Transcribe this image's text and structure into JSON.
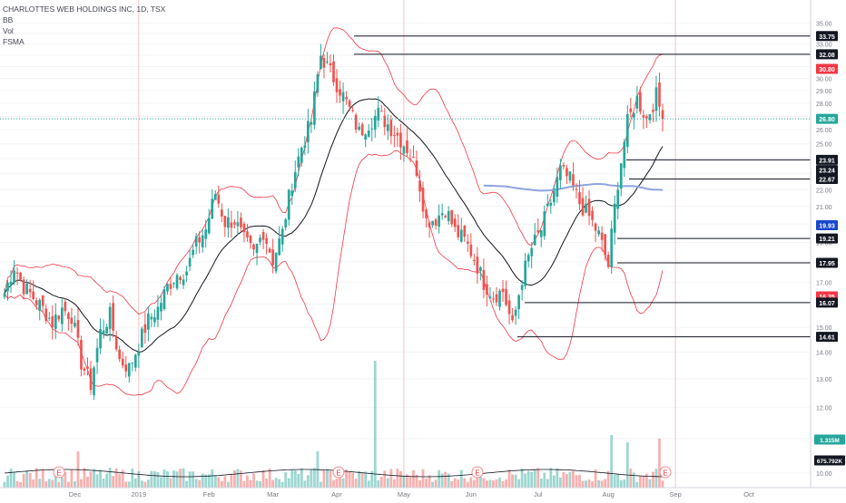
{
  "chart_data": {
    "type": "candlestick",
    "title": "CHARLOTTES WEB HOLDINGS INC, 1D, TSX",
    "indicators": [
      "BB",
      "Vol",
      "FSMA"
    ],
    "y_axis": {
      "scale": "log",
      "range": [
        9.6,
        36.2
      ],
      "ticks": [
        "35.00",
        "34.00",
        "33.00",
        "32.00",
        "31.00",
        "30.00",
        "29.00",
        "28.00",
        "27.00",
        "26.00",
        "25.00",
        "24.00",
        "23.00",
        "22.00",
        "21.00",
        "20.00",
        "19.00",
        "18.00",
        "17.00",
        "16.00",
        "15.00",
        "14.00",
        "13.00",
        "12.00",
        "11.00",
        "10.00"
      ]
    },
    "x_axis": {
      "labels": [
        "Dec",
        "2019",
        "Feb",
        "Mar",
        "Apr",
        "May",
        "Jun",
        "Jul",
        "Aug",
        "Sep",
        "Oct"
      ]
    },
    "horizontal_levels": [
      33.75,
      32.08,
      23.91,
      22.67,
      19.21,
      17.95,
      16.07,
      14.61
    ],
    "price_labels": [
      {
        "value": "33.75",
        "color": "#131722"
      },
      {
        "value": "32.08",
        "color": "#131722"
      },
      {
        "value": "30.80",
        "color": "#f23645"
      },
      {
        "value": "26.80",
        "color": "#26a69a"
      },
      {
        "value": "23.91",
        "color": "#131722"
      },
      {
        "value": "23.24",
        "color": "#131722"
      },
      {
        "value": "22.67",
        "color": "#131722"
      },
      {
        "value": "19.93",
        "color": "#1848cc"
      },
      {
        "value": "19.21",
        "color": "#131722"
      },
      {
        "value": "17.95",
        "color": "#131722"
      },
      {
        "value": "16.35",
        "color": "#f23645"
      },
      {
        "value": "16.07",
        "color": "#131722"
      },
      {
        "value": "14.61",
        "color": "#131722"
      }
    ],
    "last_price": 26.8,
    "volume_labels": [
      {
        "value": "1.315M",
        "color": "#26a69a"
      },
      {
        "value": "675.792K",
        "color": "#131722"
      }
    ],
    "earnings_markers": [
      "E",
      "E",
      "E",
      "E",
      "E",
      "E",
      "E"
    ],
    "colors": {
      "up": "#26a69a",
      "down": "#ef5350",
      "bollinger": "#f23645",
      "basis": "#131722",
      "fsma": "#8fa3e0",
      "level": "#131722"
    },
    "series": [
      {
        "name": "Price (approx. closes)",
        "close_anchors": [
          [
            0,
            16.5
          ],
          [
            3,
            17.8
          ],
          [
            6,
            16.8
          ],
          [
            9,
            16.3
          ],
          [
            12,
            15.8
          ],
          [
            15,
            15.2
          ],
          [
            18,
            15.8
          ],
          [
            21,
            15.5
          ],
          [
            24,
            13.6
          ],
          [
            27,
            12.8
          ],
          [
            30,
            14.8
          ],
          [
            33,
            15.5
          ],
          [
            36,
            13.7
          ],
          [
            39,
            13.4
          ],
          [
            42,
            14.3
          ],
          [
            45,
            15.3
          ],
          [
            48,
            15.8
          ],
          [
            51,
            16.8
          ],
          [
            54,
            17.4
          ],
          [
            57,
            17.6
          ],
          [
            60,
            18.9
          ],
          [
            63,
            19.7
          ],
          [
            66,
            21.8
          ],
          [
            69,
            20.1
          ],
          [
            72,
            20.2
          ],
          [
            75,
            19.1
          ],
          [
            78,
            18.4
          ],
          [
            81,
            19.6
          ],
          [
            84,
            18.1
          ],
          [
            87,
            19.5
          ],
          [
            90,
            22.5
          ],
          [
            93,
            24.8
          ],
          [
            96,
            26.6
          ],
          [
            99,
            32.0
          ],
          [
            102,
            30.5
          ],
          [
            105,
            29.1
          ],
          [
            108,
            27.5
          ],
          [
            111,
            25.8
          ],
          [
            114,
            26.5
          ],
          [
            117,
            27.2
          ],
          [
            120,
            26.4
          ],
          [
            123,
            25.6
          ],
          [
            126,
            24.7
          ],
          [
            129,
            23.3
          ],
          [
            132,
            20.2
          ],
          [
            135,
            20.3
          ],
          [
            138,
            20.9
          ],
          [
            141,
            19.6
          ],
          [
            144,
            19.1
          ],
          [
            147,
            18.2
          ],
          [
            150,
            17.0
          ],
          [
            153,
            16.4
          ],
          [
            156,
            16.6
          ],
          [
            159,
            15.0
          ],
          [
            162,
            17.2
          ],
          [
            165,
            18.7
          ],
          [
            168,
            19.7
          ],
          [
            171,
            21.3
          ],
          [
            174,
            23.2
          ],
          [
            177,
            22.6
          ],
          [
            180,
            21.2
          ],
          [
            183,
            20.4
          ],
          [
            186,
            19.4
          ],
          [
            189,
            17.8
          ],
          [
            192,
            22.5
          ],
          [
            195,
            26.5
          ],
          [
            198,
            28.3
          ],
          [
            201,
            26.8
          ],
          [
            204,
            28.6
          ],
          [
            206,
            26.8
          ]
        ]
      }
    ]
  }
}
